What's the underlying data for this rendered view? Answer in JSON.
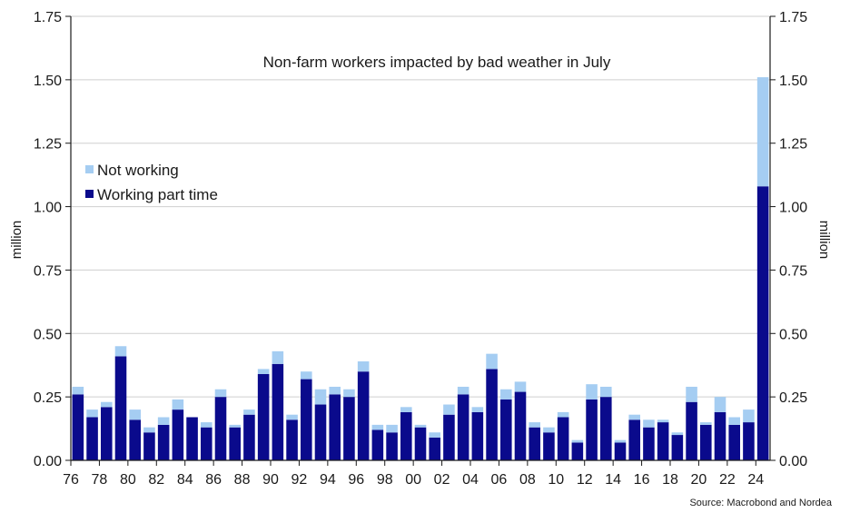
{
  "chart_data": {
    "type": "bar",
    "stacked": true,
    "title": "Non-farm workers impacted by bad weather in July",
    "ylabel_left": "million",
    "ylabel_right": "million",
    "ylim": [
      0,
      1.75
    ],
    "yticks": [
      "0.00",
      "0.25",
      "0.50",
      "0.75",
      "1.00",
      "1.25",
      "1.50",
      "1.75"
    ],
    "xtick_labels": [
      "76",
      "78",
      "80",
      "82",
      "84",
      "86",
      "88",
      "90",
      "92",
      "94",
      "96",
      "98",
      "00",
      "02",
      "04",
      "06",
      "08",
      "10",
      "12",
      "14",
      "16",
      "18",
      "20",
      "22",
      "24"
    ],
    "grid": true,
    "legend_position": "left",
    "source": "Source: Macrobond and Nordea",
    "categories": [
      "1976",
      "1977",
      "1978",
      "1979",
      "1980",
      "1981",
      "1982",
      "1983",
      "1984",
      "1985",
      "1986",
      "1987",
      "1988",
      "1989",
      "1990",
      "1991",
      "1992",
      "1993",
      "1994",
      "1995",
      "1996",
      "1997",
      "1998",
      "1999",
      "2000",
      "2001",
      "2002",
      "2003",
      "2004",
      "2005",
      "2006",
      "2007",
      "2008",
      "2009",
      "2010",
      "2011",
      "2012",
      "2013",
      "2014",
      "2015",
      "2016",
      "2017",
      "2018",
      "2019",
      "2020",
      "2021",
      "2022",
      "2023",
      "2024"
    ],
    "series": [
      {
        "name": "Working part time",
        "color": "#0a0a8c",
        "values": [
          0.26,
          0.17,
          0.21,
          0.41,
          0.16,
          0.11,
          0.14,
          0.2,
          0.17,
          0.13,
          0.25,
          0.13,
          0.18,
          0.34,
          0.38,
          0.16,
          0.32,
          0.22,
          0.26,
          0.25,
          0.35,
          0.12,
          0.11,
          0.19,
          0.13,
          0.09,
          0.18,
          0.26,
          0.19,
          0.36,
          0.24,
          0.27,
          0.13,
          0.11,
          0.17,
          0.07,
          0.24,
          0.25,
          0.07,
          0.16,
          0.13,
          0.15,
          0.1,
          0.23,
          0.14,
          0.19,
          0.14,
          0.15,
          1.08
        ]
      },
      {
        "name": "Not working",
        "color": "#a5cdf2",
        "values": [
          0.03,
          0.03,
          0.02,
          0.04,
          0.04,
          0.02,
          0.03,
          0.04,
          0.0,
          0.02,
          0.03,
          0.01,
          0.02,
          0.02,
          0.05,
          0.02,
          0.03,
          0.06,
          0.03,
          0.03,
          0.04,
          0.02,
          0.03,
          0.02,
          0.01,
          0.02,
          0.04,
          0.03,
          0.02,
          0.06,
          0.04,
          0.04,
          0.02,
          0.02,
          0.02,
          0.01,
          0.06,
          0.04,
          0.01,
          0.02,
          0.03,
          0.01,
          0.01,
          0.06,
          0.01,
          0.06,
          0.03,
          0.05,
          0.43
        ]
      }
    ]
  }
}
